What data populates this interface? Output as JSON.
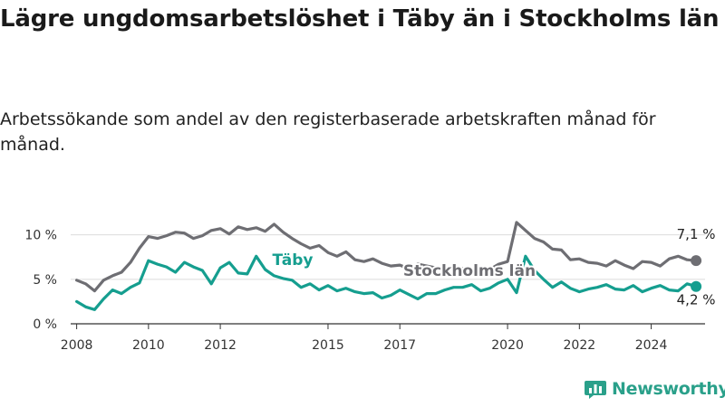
{
  "title": "Lägre ungdomsarbetslöshet i Täby än i Stockholms län",
  "subtitle": "Arbetssökande som andel av den registerbaserade arbetskraften månad för månad.",
  "brand": {
    "name": "Newsworthy",
    "icon": "bar-chart-logo-icon",
    "color": "#2aa08a"
  },
  "chart_data": {
    "type": "line",
    "xlabel": "",
    "ylabel": "",
    "ylim": [
      0,
      12
    ],
    "grid": true,
    "x_range": [
      "2007-11",
      "2025-07"
    ],
    "y_ticks": [
      0,
      5,
      10
    ],
    "y_tick_labels": [
      "0 %",
      "5 %",
      "10 %"
    ],
    "x_ticks": [
      "2008",
      "2010",
      "2012",
      "2015",
      "2017",
      "2020",
      "2022",
      "2024"
    ],
    "series": [
      {
        "name": "Stockholms län",
        "color": "#6e6e73",
        "end_label": "7,1 %",
        "x": [
          "2008-01",
          "2008-04",
          "2008-07",
          "2008-10",
          "2009-01",
          "2009-04",
          "2009-07",
          "2009-10",
          "2010-01",
          "2010-04",
          "2010-07",
          "2010-10",
          "2011-01",
          "2011-04",
          "2011-07",
          "2011-10",
          "2012-01",
          "2012-04",
          "2012-07",
          "2012-10",
          "2013-01",
          "2013-04",
          "2013-07",
          "2013-10",
          "2014-01",
          "2014-04",
          "2014-07",
          "2014-10",
          "2015-01",
          "2015-04",
          "2015-07",
          "2015-10",
          "2016-01",
          "2016-04",
          "2016-07",
          "2016-10",
          "2017-01",
          "2017-04",
          "2017-07",
          "2017-10",
          "2018-01",
          "2018-04",
          "2018-07",
          "2018-10",
          "2019-01",
          "2019-04",
          "2019-07",
          "2019-10",
          "2020-01",
          "2020-04",
          "2020-07",
          "2020-10",
          "2021-01",
          "2021-04",
          "2021-07",
          "2021-10",
          "2022-01",
          "2022-04",
          "2022-07",
          "2022-10",
          "2023-01",
          "2023-04",
          "2023-07",
          "2023-10",
          "2024-01",
          "2024-04",
          "2024-07",
          "2024-10",
          "2025-01",
          "2025-04"
        ],
        "values": [
          4.9,
          4.5,
          3.7,
          4.9,
          5.4,
          5.8,
          6.9,
          8.5,
          9.8,
          9.6,
          9.9,
          10.3,
          10.2,
          9.6,
          9.9,
          10.5,
          10.7,
          10.1,
          10.9,
          10.6,
          10.8,
          10.4,
          11.2,
          10.3,
          9.6,
          9.0,
          8.5,
          8.8,
          8.0,
          7.6,
          8.1,
          7.2,
          7.0,
          7.3,
          6.8,
          6.5,
          6.6,
          6.2,
          6.7,
          6.5,
          6.3,
          6.0,
          6.4,
          6.2,
          6.0,
          6.4,
          6.1,
          6.7,
          7.0,
          11.4,
          10.5,
          9.6,
          9.2,
          8.4,
          8.3,
          7.2,
          7.3,
          6.9,
          6.8,
          6.5,
          7.1,
          6.6,
          6.2,
          7.0,
          6.9,
          6.5,
          7.3,
          7.6,
          7.2,
          7.1
        ]
      },
      {
        "name": "Täby",
        "color": "#159e8f",
        "end_label": "4,2 %",
        "x": [
          "2008-01",
          "2008-04",
          "2008-07",
          "2008-10",
          "2009-01",
          "2009-04",
          "2009-07",
          "2009-10",
          "2010-01",
          "2010-04",
          "2010-07",
          "2010-10",
          "2011-01",
          "2011-04",
          "2011-07",
          "2011-10",
          "2012-01",
          "2012-04",
          "2012-07",
          "2012-10",
          "2013-01",
          "2013-04",
          "2013-07",
          "2013-10",
          "2014-01",
          "2014-04",
          "2014-07",
          "2014-10",
          "2015-01",
          "2015-04",
          "2015-07",
          "2015-10",
          "2016-01",
          "2016-04",
          "2016-07",
          "2016-10",
          "2017-01",
          "2017-04",
          "2017-07",
          "2017-10",
          "2018-01",
          "2018-04",
          "2018-07",
          "2018-10",
          "2019-01",
          "2019-04",
          "2019-07",
          "2019-10",
          "2020-01",
          "2020-04",
          "2020-07",
          "2020-10",
          "2021-01",
          "2021-04",
          "2021-07",
          "2021-10",
          "2022-01",
          "2022-04",
          "2022-07",
          "2022-10",
          "2023-01",
          "2023-04",
          "2023-07",
          "2023-10",
          "2024-01",
          "2024-04",
          "2024-07",
          "2024-10",
          "2025-01",
          "2025-04"
        ],
        "values": [
          2.5,
          1.9,
          1.6,
          2.8,
          3.8,
          3.4,
          4.1,
          4.6,
          7.1,
          6.7,
          6.4,
          5.8,
          6.9,
          6.4,
          6.0,
          4.5,
          6.3,
          6.9,
          5.7,
          5.6,
          7.6,
          6.1,
          5.4,
          5.1,
          4.9,
          4.1,
          4.5,
          3.8,
          4.3,
          3.7,
          4.0,
          3.6,
          3.4,
          3.5,
          2.9,
          3.2,
          3.8,
          3.3,
          2.8,
          3.4,
          3.4,
          3.8,
          4.1,
          4.1,
          4.4,
          3.7,
          4.0,
          4.6,
          5.0,
          3.5,
          7.6,
          6.0,
          5.0,
          4.1,
          4.7,
          4.0,
          3.6,
          3.9,
          4.1,
          4.4,
          3.9,
          3.8,
          4.3,
          3.6,
          4.0,
          4.3,
          3.8,
          3.7,
          4.5,
          4.2
        ]
      }
    ],
    "inline_labels": [
      "Täby",
      "Stockholms län"
    ]
  }
}
